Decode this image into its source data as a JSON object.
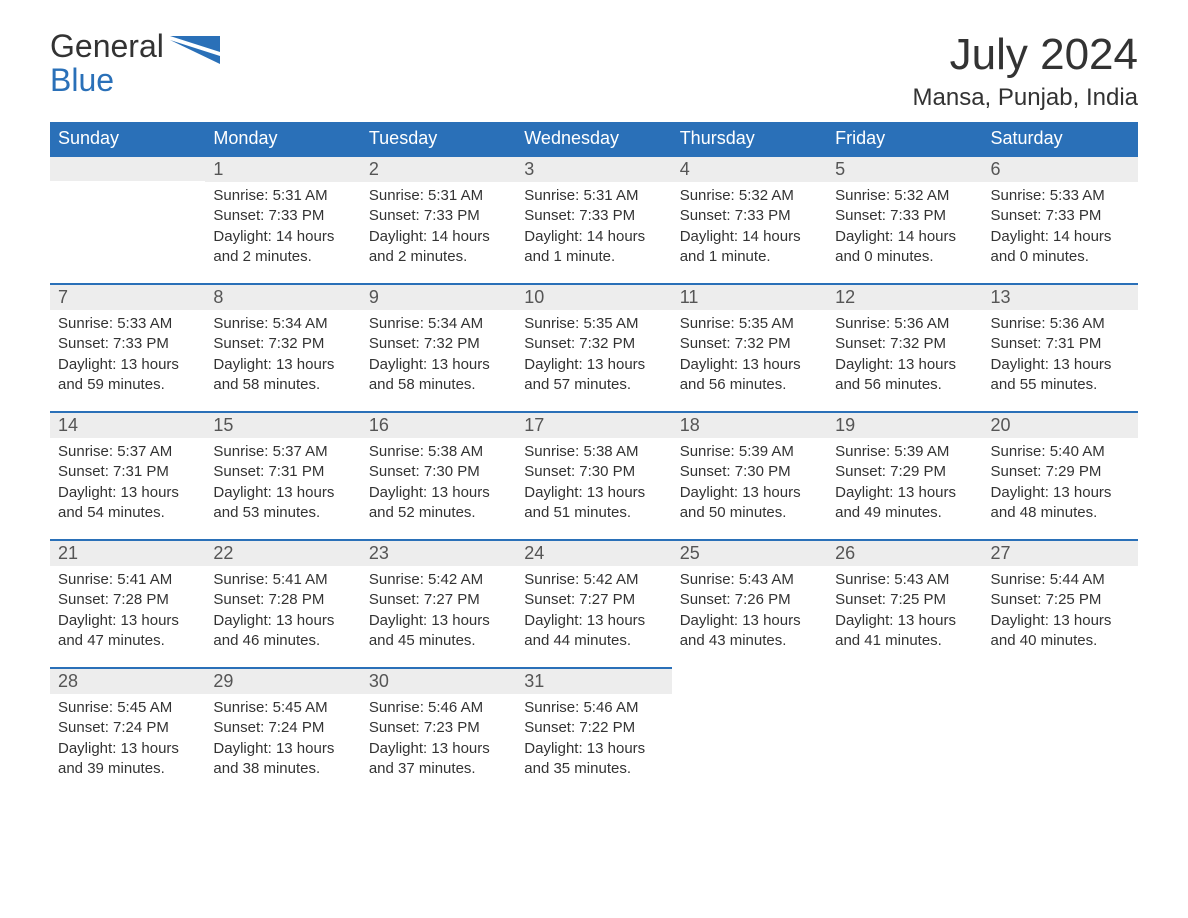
{
  "logo": {
    "line1": "General",
    "line2": "Blue",
    "icon_color": "#2a70b8"
  },
  "title": {
    "main": "July 2024",
    "sub": "Mansa, Punjab, India"
  },
  "colors": {
    "header_bg": "#2a70b8",
    "header_text": "#ffffff",
    "day_strip_bg": "#ededed",
    "day_strip_border": "#2a70b8",
    "body_bg": "#ffffff",
    "text": "#333333"
  },
  "font": {
    "family": "Arial",
    "title_size_pt": 33,
    "sub_size_pt": 18,
    "header_size_pt": 14,
    "body_size_pt": 11
  },
  "columns": [
    "Sunday",
    "Monday",
    "Tuesday",
    "Wednesday",
    "Thursday",
    "Friday",
    "Saturday"
  ],
  "weeks": [
    [
      null,
      {
        "n": "1",
        "sunrise": "Sunrise: 5:31 AM",
        "sunset": "Sunset: 7:33 PM",
        "d1": "Daylight: 14 hours",
        "d2": "and 2 minutes."
      },
      {
        "n": "2",
        "sunrise": "Sunrise: 5:31 AM",
        "sunset": "Sunset: 7:33 PM",
        "d1": "Daylight: 14 hours",
        "d2": "and 2 minutes."
      },
      {
        "n": "3",
        "sunrise": "Sunrise: 5:31 AM",
        "sunset": "Sunset: 7:33 PM",
        "d1": "Daylight: 14 hours",
        "d2": "and 1 minute."
      },
      {
        "n": "4",
        "sunrise": "Sunrise: 5:32 AM",
        "sunset": "Sunset: 7:33 PM",
        "d1": "Daylight: 14 hours",
        "d2": "and 1 minute."
      },
      {
        "n": "5",
        "sunrise": "Sunrise: 5:32 AM",
        "sunset": "Sunset: 7:33 PM",
        "d1": "Daylight: 14 hours",
        "d2": "and 0 minutes."
      },
      {
        "n": "6",
        "sunrise": "Sunrise: 5:33 AM",
        "sunset": "Sunset: 7:33 PM",
        "d1": "Daylight: 14 hours",
        "d2": "and 0 minutes."
      }
    ],
    [
      {
        "n": "7",
        "sunrise": "Sunrise: 5:33 AM",
        "sunset": "Sunset: 7:33 PM",
        "d1": "Daylight: 13 hours",
        "d2": "and 59 minutes."
      },
      {
        "n": "8",
        "sunrise": "Sunrise: 5:34 AM",
        "sunset": "Sunset: 7:32 PM",
        "d1": "Daylight: 13 hours",
        "d2": "and 58 minutes."
      },
      {
        "n": "9",
        "sunrise": "Sunrise: 5:34 AM",
        "sunset": "Sunset: 7:32 PM",
        "d1": "Daylight: 13 hours",
        "d2": "and 58 minutes."
      },
      {
        "n": "10",
        "sunrise": "Sunrise: 5:35 AM",
        "sunset": "Sunset: 7:32 PM",
        "d1": "Daylight: 13 hours",
        "d2": "and 57 minutes."
      },
      {
        "n": "11",
        "sunrise": "Sunrise: 5:35 AM",
        "sunset": "Sunset: 7:32 PM",
        "d1": "Daylight: 13 hours",
        "d2": "and 56 minutes."
      },
      {
        "n": "12",
        "sunrise": "Sunrise: 5:36 AM",
        "sunset": "Sunset: 7:32 PM",
        "d1": "Daylight: 13 hours",
        "d2": "and 56 minutes."
      },
      {
        "n": "13",
        "sunrise": "Sunrise: 5:36 AM",
        "sunset": "Sunset: 7:31 PM",
        "d1": "Daylight: 13 hours",
        "d2": "and 55 minutes."
      }
    ],
    [
      {
        "n": "14",
        "sunrise": "Sunrise: 5:37 AM",
        "sunset": "Sunset: 7:31 PM",
        "d1": "Daylight: 13 hours",
        "d2": "and 54 minutes."
      },
      {
        "n": "15",
        "sunrise": "Sunrise: 5:37 AM",
        "sunset": "Sunset: 7:31 PM",
        "d1": "Daylight: 13 hours",
        "d2": "and 53 minutes."
      },
      {
        "n": "16",
        "sunrise": "Sunrise: 5:38 AM",
        "sunset": "Sunset: 7:30 PM",
        "d1": "Daylight: 13 hours",
        "d2": "and 52 minutes."
      },
      {
        "n": "17",
        "sunrise": "Sunrise: 5:38 AM",
        "sunset": "Sunset: 7:30 PM",
        "d1": "Daylight: 13 hours",
        "d2": "and 51 minutes."
      },
      {
        "n": "18",
        "sunrise": "Sunrise: 5:39 AM",
        "sunset": "Sunset: 7:30 PM",
        "d1": "Daylight: 13 hours",
        "d2": "and 50 minutes."
      },
      {
        "n": "19",
        "sunrise": "Sunrise: 5:39 AM",
        "sunset": "Sunset: 7:29 PM",
        "d1": "Daylight: 13 hours",
        "d2": "and 49 minutes."
      },
      {
        "n": "20",
        "sunrise": "Sunrise: 5:40 AM",
        "sunset": "Sunset: 7:29 PM",
        "d1": "Daylight: 13 hours",
        "d2": "and 48 minutes."
      }
    ],
    [
      {
        "n": "21",
        "sunrise": "Sunrise: 5:41 AM",
        "sunset": "Sunset: 7:28 PM",
        "d1": "Daylight: 13 hours",
        "d2": "and 47 minutes."
      },
      {
        "n": "22",
        "sunrise": "Sunrise: 5:41 AM",
        "sunset": "Sunset: 7:28 PM",
        "d1": "Daylight: 13 hours",
        "d2": "and 46 minutes."
      },
      {
        "n": "23",
        "sunrise": "Sunrise: 5:42 AM",
        "sunset": "Sunset: 7:27 PM",
        "d1": "Daylight: 13 hours",
        "d2": "and 45 minutes."
      },
      {
        "n": "24",
        "sunrise": "Sunrise: 5:42 AM",
        "sunset": "Sunset: 7:27 PM",
        "d1": "Daylight: 13 hours",
        "d2": "and 44 minutes."
      },
      {
        "n": "25",
        "sunrise": "Sunrise: 5:43 AM",
        "sunset": "Sunset: 7:26 PM",
        "d1": "Daylight: 13 hours",
        "d2": "and 43 minutes."
      },
      {
        "n": "26",
        "sunrise": "Sunrise: 5:43 AM",
        "sunset": "Sunset: 7:25 PM",
        "d1": "Daylight: 13 hours",
        "d2": "and 41 minutes."
      },
      {
        "n": "27",
        "sunrise": "Sunrise: 5:44 AM",
        "sunset": "Sunset: 7:25 PM",
        "d1": "Daylight: 13 hours",
        "d2": "and 40 minutes."
      }
    ],
    [
      {
        "n": "28",
        "sunrise": "Sunrise: 5:45 AM",
        "sunset": "Sunset: 7:24 PM",
        "d1": "Daylight: 13 hours",
        "d2": "and 39 minutes."
      },
      {
        "n": "29",
        "sunrise": "Sunrise: 5:45 AM",
        "sunset": "Sunset: 7:24 PM",
        "d1": "Daylight: 13 hours",
        "d2": "and 38 minutes."
      },
      {
        "n": "30",
        "sunrise": "Sunrise: 5:46 AM",
        "sunset": "Sunset: 7:23 PM",
        "d1": "Daylight: 13 hours",
        "d2": "and 37 minutes."
      },
      {
        "n": "31",
        "sunrise": "Sunrise: 5:46 AM",
        "sunset": "Sunset: 7:22 PM",
        "d1": "Daylight: 13 hours",
        "d2": "and 35 minutes."
      },
      null,
      null,
      null
    ]
  ]
}
